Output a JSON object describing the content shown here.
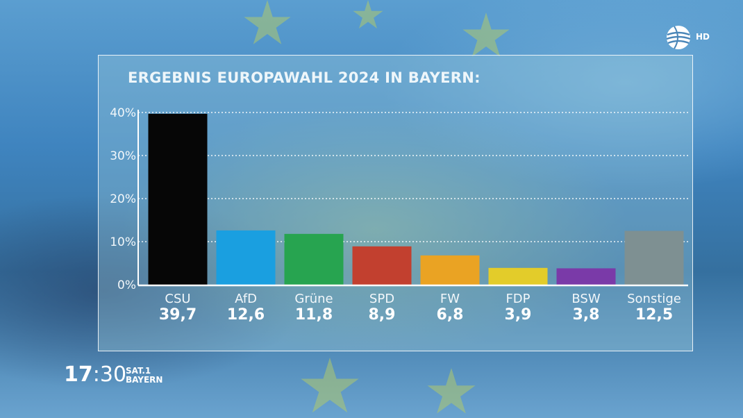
{
  "chart_data": {
    "type": "bar",
    "title": "ERGEBNIS EUROPAWAHL 2024 IN BAYERN:",
    "categories": [
      "CSU",
      "AfD",
      "Grüne",
      "SPD",
      "FW",
      "FDP",
      "BSW",
      "Sonstige"
    ],
    "values": [
      39.7,
      12.6,
      11.8,
      8.9,
      6.8,
      3.9,
      3.8,
      12.5
    ],
    "value_labels": [
      "39,7",
      "12,6",
      "11,8",
      "8,9",
      "6,8",
      "3,9",
      "3,8",
      "12,5"
    ],
    "colors": [
      "#060606",
      "#1a9fe0",
      "#27a450",
      "#c2402f",
      "#eaa323",
      "#e3cc2a",
      "#7a3aa8",
      "#7e9092"
    ],
    "ylim": [
      0,
      40
    ],
    "yticks": [
      0,
      10,
      20,
      30,
      40
    ],
    "ytick_labels": [
      "0%",
      "10%",
      "20%",
      "30%",
      "40%"
    ],
    "grid": true
  },
  "overlay": {
    "clock_hours": "17",
    "clock_separator": ":",
    "clock_minutes": "30",
    "channel_line1": "SAT.1",
    "channel_line2": "BAYERN",
    "hd_badge": "HD",
    "logo_icon": "sat1-ball-logo-icon"
  }
}
